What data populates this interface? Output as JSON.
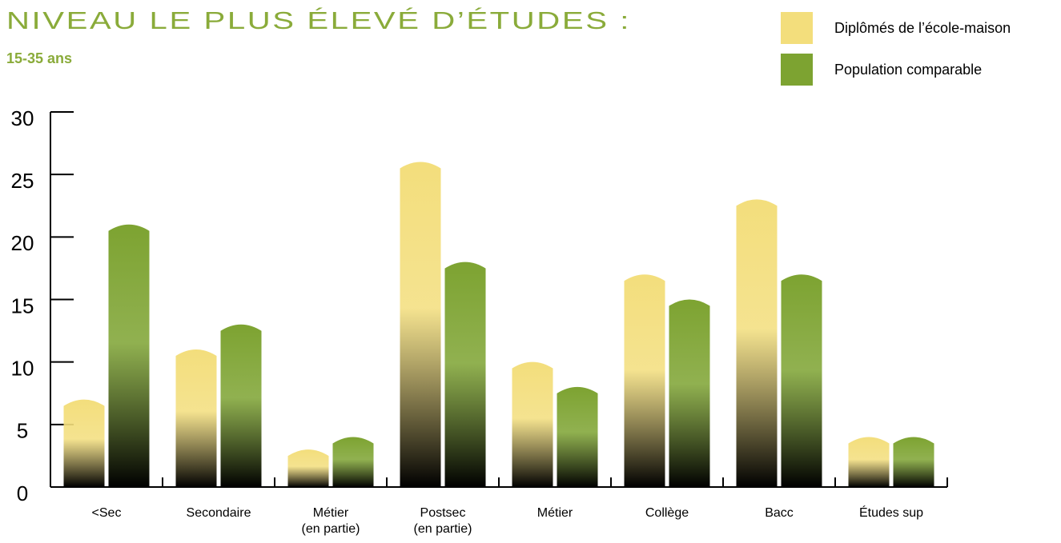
{
  "chart_data": {
    "type": "bar",
    "title": "NIVEAU LE PLUS ÉLEVÉ D’ÉTUDES :",
    "subtitle": "15-35 ans",
    "categories": [
      "<Sec",
      "Secondaire",
      "Métier\n(en partie)",
      "Postsec\n(en partie)",
      "Métier",
      "Collège",
      "Bacc",
      "Études sup"
    ],
    "series": [
      {
        "name": "Diplômés de l’école-maison",
        "color": "#f3de7c",
        "values": [
          7,
          11,
          3,
          26,
          10,
          17,
          23,
          4
        ]
      },
      {
        "name": "Population comparable",
        "color": "#7da331",
        "values": [
          21,
          13,
          4,
          18,
          8,
          15,
          17,
          4
        ]
      }
    ],
    "ylim": [
      0,
      30
    ],
    "yticks": [
      0,
      5,
      10,
      15,
      20,
      25,
      30
    ],
    "legend": "top-right"
  }
}
